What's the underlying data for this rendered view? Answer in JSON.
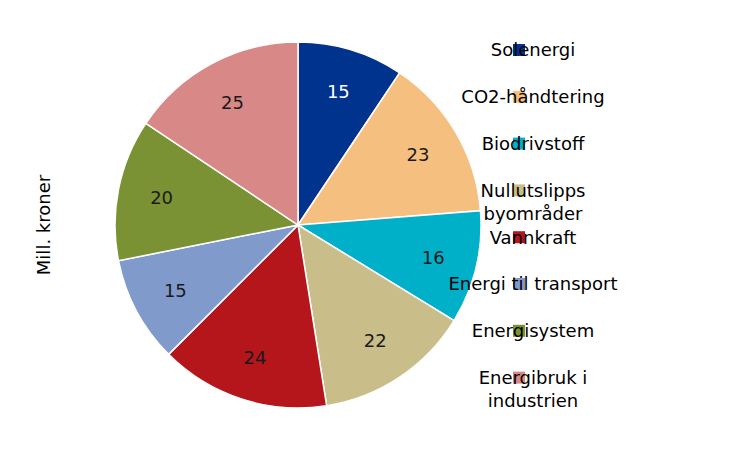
{
  "chart_data": {
    "type": "pie",
    "ylabel": "Mill. kroner",
    "categories": [
      "Solenergi",
      "CO2-håndtering",
      "Biodrivstoff",
      "Nullutslipps byområder",
      "Vannkraft",
      "Energi til transport",
      "Energisystem",
      "Energibruk i industrien"
    ],
    "values": [
      15,
      23,
      16,
      22,
      24,
      15,
      20,
      25
    ],
    "colors": [
      "#00338d",
      "#f5c07f",
      "#00afc8",
      "#c9bd8a",
      "#b5161c",
      "#7f9acb",
      "#7a9233",
      "#d98888"
    ],
    "data_labels": true,
    "legend": "right"
  }
}
